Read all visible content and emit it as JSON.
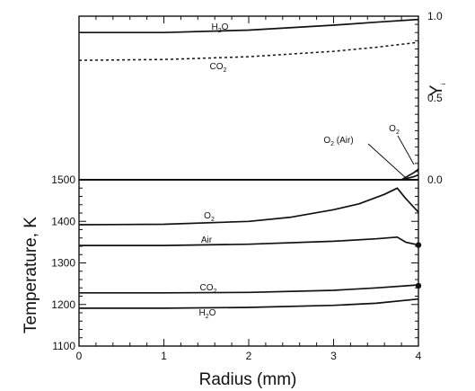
{
  "chart_data": [
    {
      "type": "line",
      "panel": "mass-fraction",
      "ylabel": "Y",
      "ylabel_subscript": "i",
      "xlim": [
        0,
        4
      ],
      "ylim": [
        0,
        1.0
      ],
      "y_ticks": [
        "1.0",
        "0.5",
        "0.0"
      ],
      "series": [
        {
          "name": "H2O",
          "label": "H",
          "label_sub": "2",
          "label_tail": "O",
          "style": "solid",
          "x": [
            0,
            1,
            2,
            3,
            3.5,
            4
          ],
          "y": [
            0.9,
            0.9,
            0.915,
            0.945,
            0.963,
            0.98
          ]
        },
        {
          "name": "CO2",
          "label": "CO",
          "label_sub": "2",
          "label_tail": "",
          "style": "dashed",
          "x": [
            0,
            1,
            2,
            3,
            3.5,
            4
          ],
          "y": [
            0.73,
            0.735,
            0.752,
            0.785,
            0.81,
            0.84
          ]
        },
        {
          "name": "O2",
          "label": "O",
          "label_sub": "2",
          "label_tail": "",
          "style": "solid",
          "x": [
            0,
            3.8,
            3.95,
            4
          ],
          "y": [
            0.0,
            0.0,
            0.045,
            0.065
          ]
        },
        {
          "name": "O2 (Air)",
          "label": "O",
          "label_sub": "2",
          "label_tail": " (Air)",
          "style": "solid",
          "x": [
            0,
            3.8,
            3.95,
            4
          ],
          "y": [
            0.0,
            0.0,
            0.02,
            0.03
          ]
        }
      ]
    },
    {
      "type": "line",
      "panel": "temperature",
      "ylabel": "Temperature, K",
      "xlabel": "Radius (mm)",
      "xlim": [
        0,
        4
      ],
      "ylim": [
        1100,
        1500
      ],
      "x_ticks": [
        "0",
        "1",
        "2",
        "3",
        "4"
      ],
      "y_ticks": [
        "1500",
        "1400",
        "1300",
        "1200",
        "1100"
      ],
      "series": [
        {
          "name": "O2",
          "label": "O",
          "label_sub": "2",
          "label_tail": "",
          "style": "solid",
          "x": [
            0,
            1,
            2,
            2.5,
            3,
            3.3,
            3.6,
            3.75,
            3.85,
            4
          ],
          "y": [
            1392,
            1393,
            1400,
            1410,
            1428,
            1442,
            1465,
            1480,
            1455,
            1422
          ]
        },
        {
          "name": "Air",
          "label": "Air",
          "label_sub": "",
          "label_tail": "",
          "style": "solid",
          "x": [
            0,
            1,
            2,
            3,
            3.5,
            3.75,
            3.85,
            4
          ],
          "y": [
            1342,
            1342,
            1345,
            1352,
            1358,
            1362,
            1350,
            1343
          ]
        },
        {
          "name": "CO2",
          "label": "CO",
          "label_sub": "2",
          "label_tail": "",
          "style": "solid",
          "x": [
            0,
            1,
            2,
            3,
            3.5,
            4
          ],
          "y": [
            1228,
            1228,
            1229,
            1234,
            1240,
            1247
          ]
        },
        {
          "name": "H2O",
          "label": "H",
          "label_sub": "2",
          "label_tail": "O",
          "style": "solid",
          "x": [
            0,
            1,
            2,
            3,
            3.5,
            4
          ],
          "y": [
            1191,
            1191,
            1193,
            1198,
            1203,
            1213
          ]
        }
      ],
      "markers": [
        {
          "name": "Air",
          "x": 4,
          "y": 1343
        },
        {
          "name": "CO2",
          "x": 4,
          "y": 1245
        }
      ]
    }
  ]
}
